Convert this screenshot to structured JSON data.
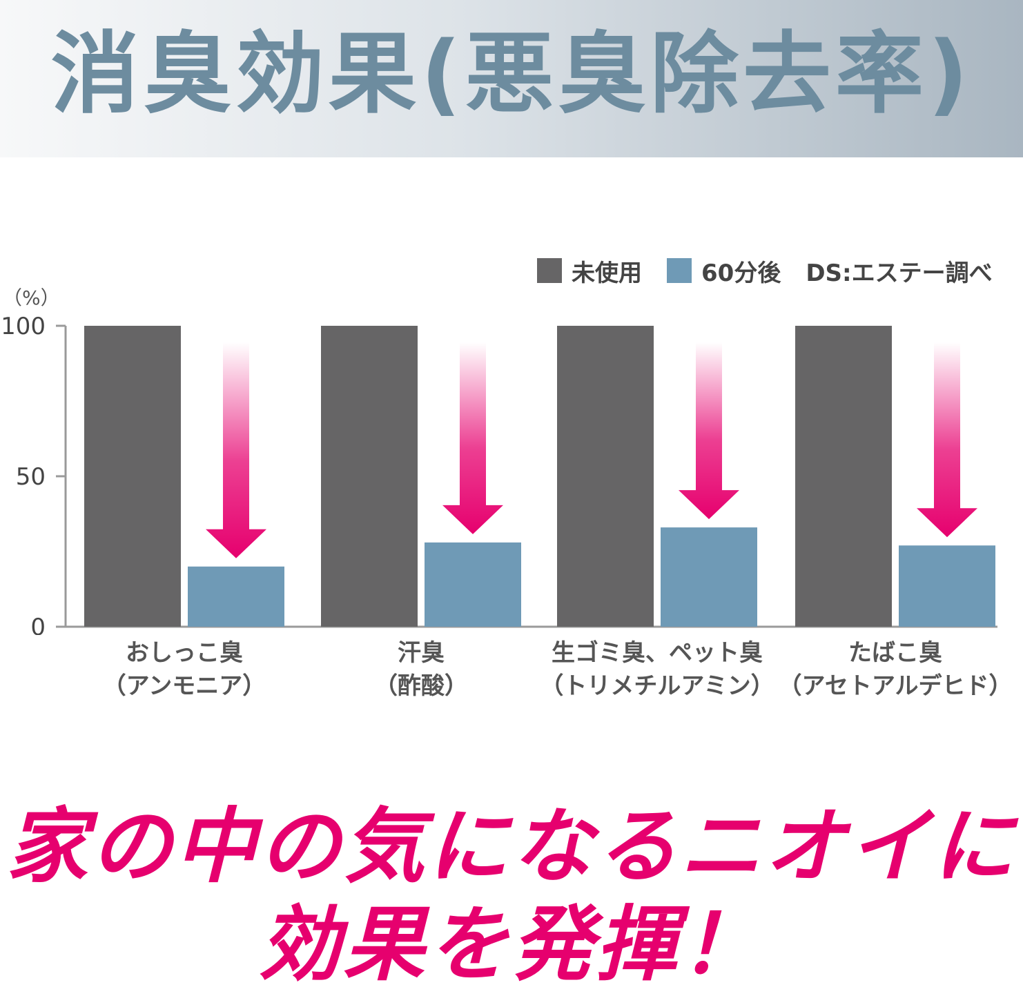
{
  "header": {
    "title": "消臭効果(悪臭除去率)"
  },
  "legend": {
    "items": [
      {
        "label": "未使用",
        "color": "#666566"
      },
      {
        "label": "60分後",
        "color": "#6f9ab6"
      }
    ],
    "source": "DS:エステー調べ"
  },
  "chart_data": {
    "type": "bar",
    "unit_label": "（%）",
    "categories": [
      {
        "line1": "おしっこ臭",
        "line2": "（アンモニア）"
      },
      {
        "line1": "汗臭",
        "line2": "（酢酸）"
      },
      {
        "line1": "生ゴミ臭、ペット臭",
        "line2": "（トリメチルアミン）"
      },
      {
        "line1": "たばこ臭",
        "line2": "（アセトアルデヒド）"
      }
    ],
    "series": [
      {
        "name": "未使用",
        "color": "#666566",
        "values": [
          100,
          100,
          100,
          100
        ]
      },
      {
        "name": "60分後",
        "color": "#6f9ab6",
        "values": [
          20,
          28,
          33,
          27
        ]
      }
    ],
    "yticks": [
      0,
      50,
      100
    ],
    "ylim": [
      0,
      100
    ],
    "arrow_color": "#e6006e"
  },
  "catchcopy": {
    "line1": "家の中の気になるニオイに",
    "line2": "効果を発揮！"
  }
}
